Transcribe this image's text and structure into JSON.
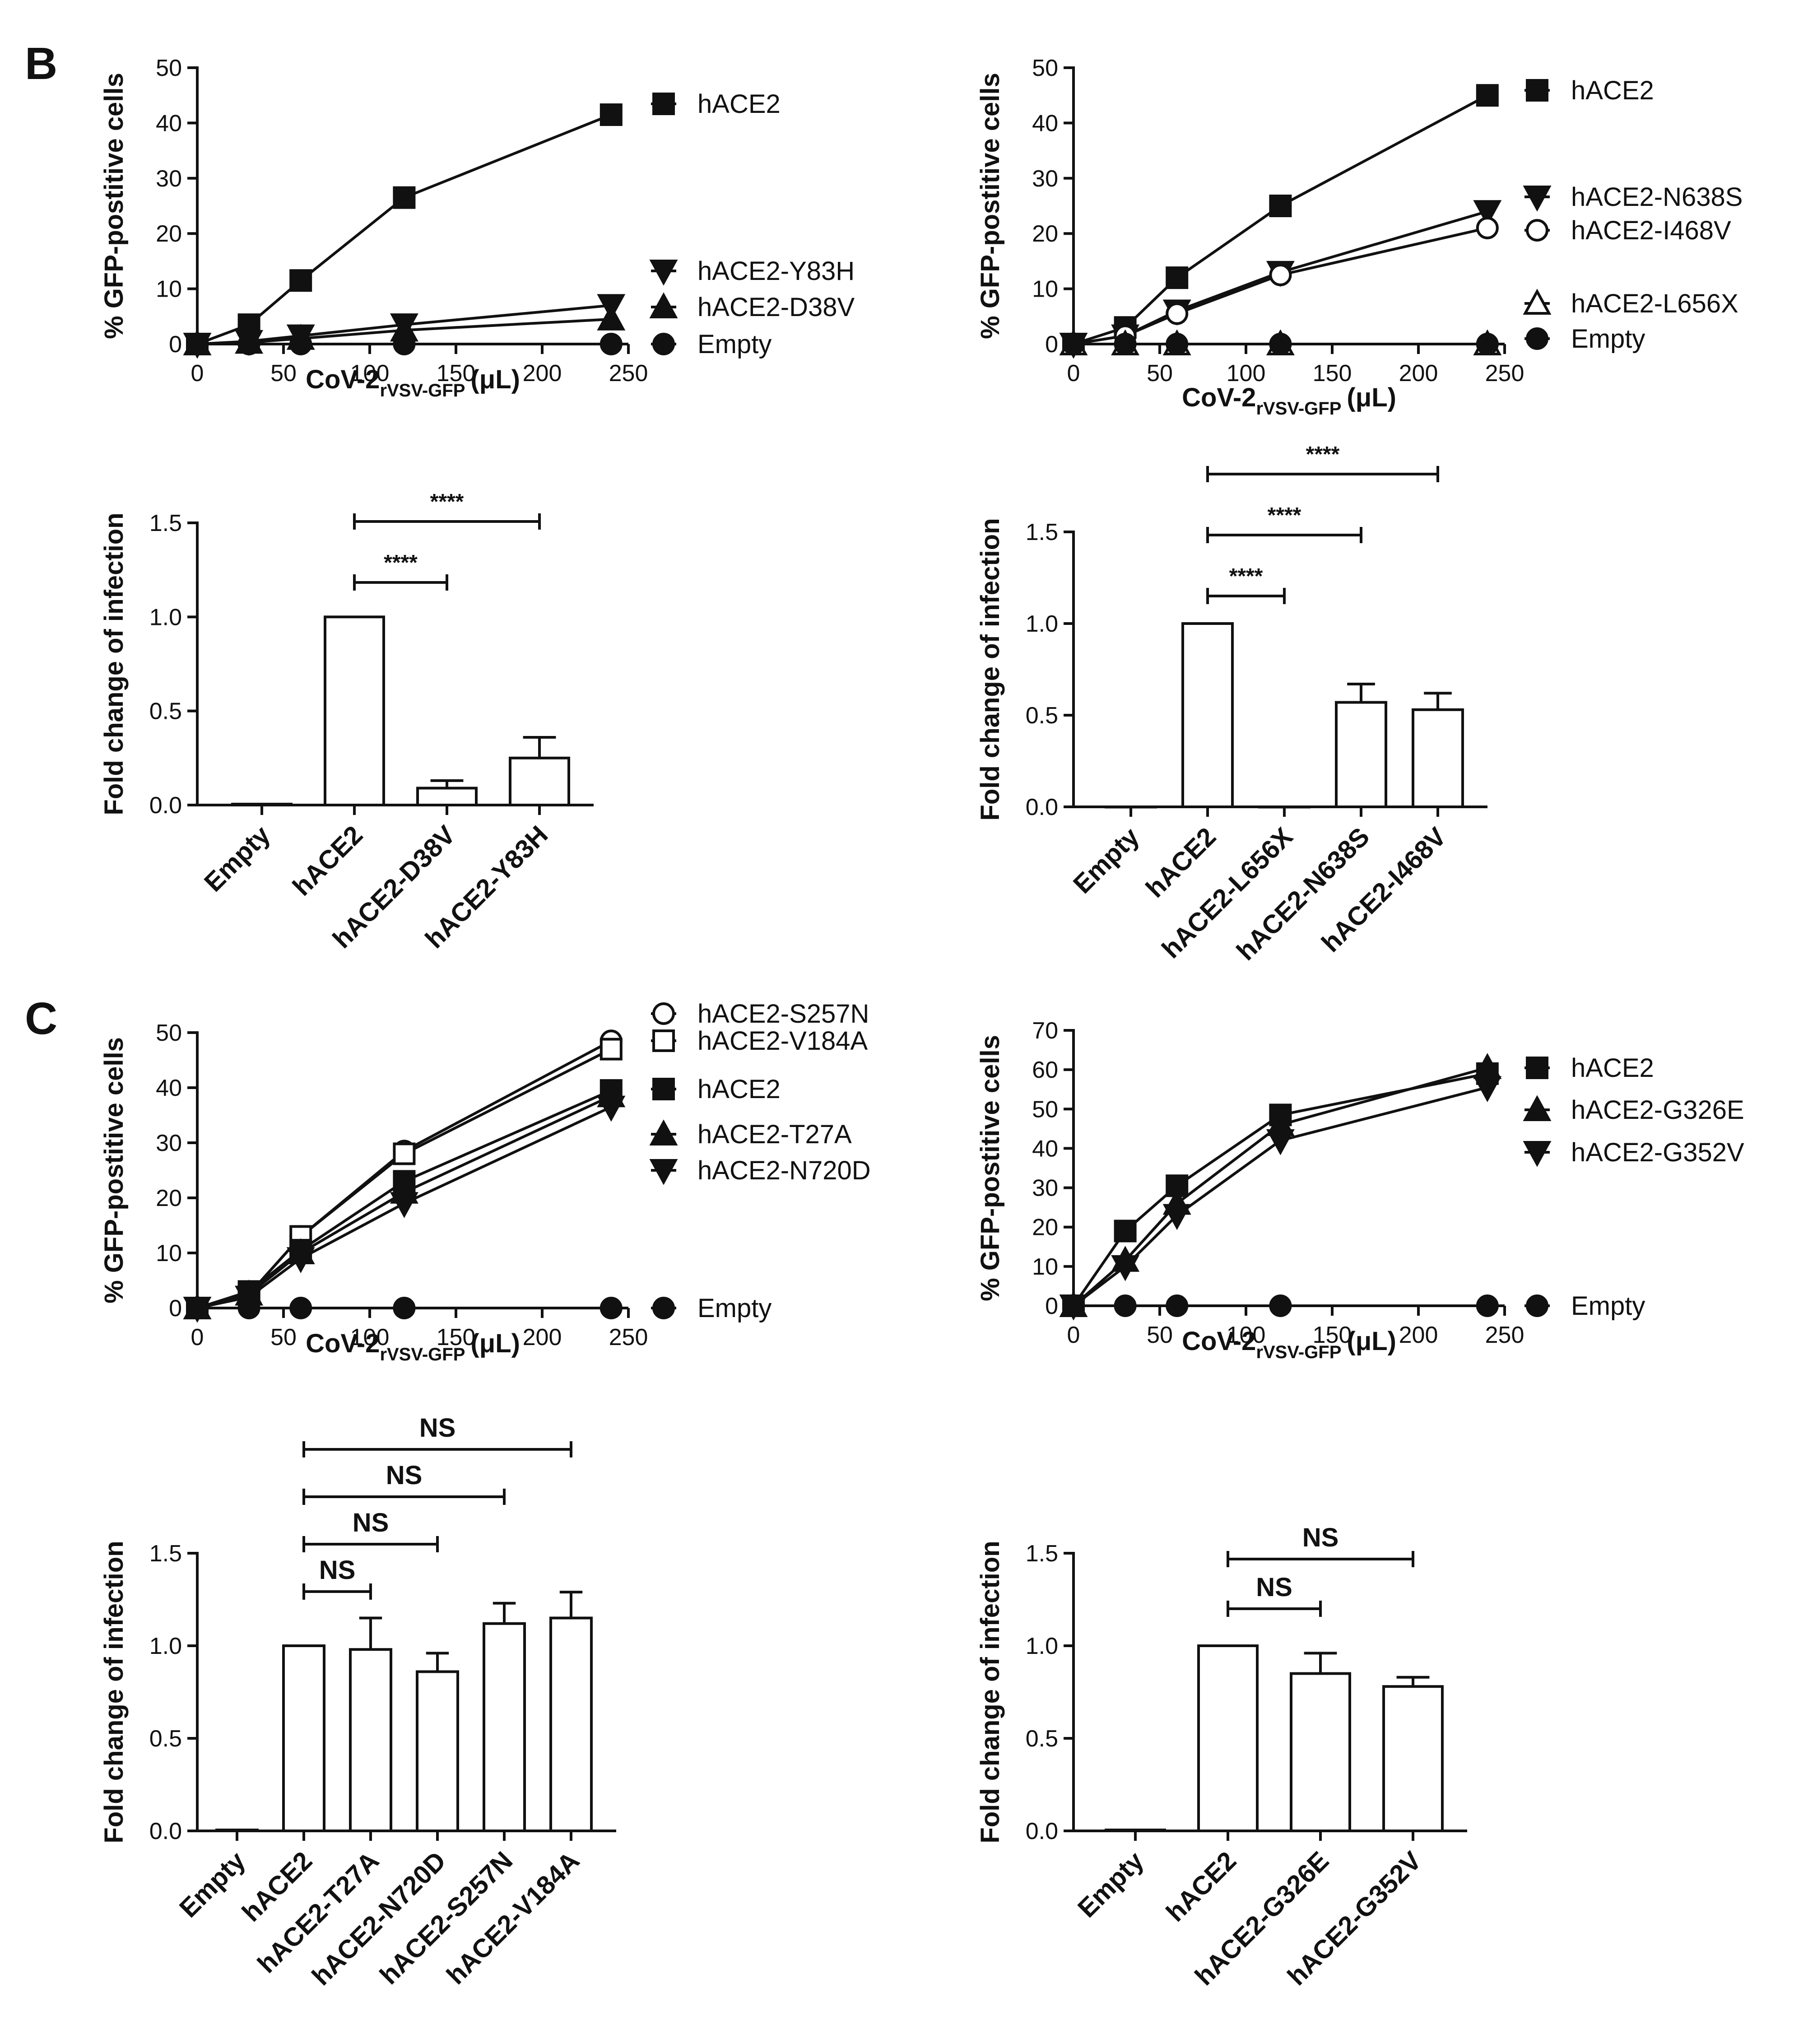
{
  "panel_letters": [
    "B",
    "C"
  ],
  "chart_data": [
    {
      "id": "B-left-line",
      "type": "line",
      "panel": "B",
      "title": "",
      "ylabel": "% GFP-postitive cells",
      "xlabel_main": "CoV-2",
      "xlabel_sub": "rVSV-GFP",
      "xlabel_unit": "(μL)",
      "ylim": [
        0,
        50
      ],
      "yticks": [
        0,
        10,
        20,
        30,
        40,
        50
      ],
      "xlim": [
        0,
        250
      ],
      "xticks": [
        0,
        50,
        100,
        150,
        200,
        250
      ],
      "x": [
        0,
        30,
        60,
        120,
        240
      ],
      "series": [
        {
          "name": "hACE2",
          "marker": "square-filled",
          "values": [
            0,
            3.5,
            11.5,
            26.5,
            41.5
          ]
        },
        {
          "name": "hACE2-Y83H",
          "marker": "triangle-down-filled",
          "values": [
            0,
            0.5,
            1.5,
            3.5,
            7
          ]
        },
        {
          "name": "hACE2-D38V",
          "marker": "triangle-up-filled",
          "values": [
            0,
            0.3,
            1,
            2.5,
            4.5
          ]
        },
        {
          "name": "Empty",
          "marker": "circle-filled",
          "values": [
            0,
            0,
            0,
            0,
            0
          ]
        }
      ]
    },
    {
      "id": "B-right-line",
      "type": "line",
      "panel": "B",
      "title": "",
      "ylabel": "% GFP-postitive cells",
      "xlabel_main": "CoV-2",
      "xlabel_sub": "rVSV-GFP",
      "xlabel_unit": "(μL)",
      "ylim": [
        0,
        50
      ],
      "yticks": [
        0,
        10,
        20,
        30,
        40,
        50
      ],
      "xlim": [
        0,
        250
      ],
      "xticks": [
        0,
        50,
        100,
        150,
        200,
        250
      ],
      "x": [
        0,
        30,
        60,
        120,
        240
      ],
      "series": [
        {
          "name": "hACE2",
          "marker": "square-filled",
          "values": [
            0,
            3,
            12,
            25,
            45
          ]
        },
        {
          "name": "hACE2-N638S",
          "marker": "triangle-down-filled",
          "values": [
            0,
            1.5,
            6,
            13,
            24
          ]
        },
        {
          "name": "hACE2-I468V",
          "marker": "circle-open",
          "values": [
            0,
            1.5,
            5.5,
            12.5,
            21
          ]
        },
        {
          "name": "hACE2-L656X",
          "marker": "triangle-up-open",
          "values": [
            0,
            0,
            0,
            0,
            0
          ]
        },
        {
          "name": "Empty",
          "marker": "circle-filled",
          "values": [
            0,
            0,
            0,
            0,
            0
          ]
        }
      ]
    },
    {
      "id": "B-left-bar",
      "type": "bar",
      "panel": "B",
      "ylabel": "Fold change of infection",
      "ylim": [
        0,
        1.5
      ],
      "yticks": [
        "0.0",
        "0.5",
        "1.0",
        "1.5"
      ],
      "categories": [
        "Empty",
        "hACE2",
        "hACE2-D38V",
        "hACE2-Y83H"
      ],
      "values": [
        0.005,
        1.0,
        0.09,
        0.25
      ],
      "errors": [
        0,
        0,
        0.04,
        0.11
      ],
      "significance": [
        {
          "from": 1,
          "to": 2,
          "label": "****",
          "level": 0
        },
        {
          "from": 1,
          "to": 3,
          "label": "****",
          "level": 1
        }
      ]
    },
    {
      "id": "B-right-bar",
      "type": "bar",
      "panel": "B",
      "ylabel": "Fold change of infection",
      "ylim": [
        0,
        1.5
      ],
      "yticks": [
        "0.0",
        "0.5",
        "1.0",
        "1.5"
      ],
      "categories": [
        "Empty",
        "hACE2",
        "hACE2-L656X",
        "hACE2-N638S",
        "hACE2-I468V"
      ],
      "values": [
        0.0,
        1.0,
        0.0,
        0.57,
        0.53
      ],
      "errors": [
        0,
        0,
        0,
        0.1,
        0.09
      ],
      "significance": [
        {
          "from": 1,
          "to": 2,
          "label": "****",
          "level": 0
        },
        {
          "from": 1,
          "to": 3,
          "label": "****",
          "level": 1
        },
        {
          "from": 1,
          "to": 4,
          "label": "****",
          "level": 2
        }
      ]
    },
    {
      "id": "C-left-line",
      "type": "line",
      "panel": "C",
      "ylabel": "% GFP-postitive cells",
      "xlabel_main": "CoV-2",
      "xlabel_sub": "rVSV-GFP",
      "xlabel_unit": "(μL)",
      "ylim": [
        0,
        50
      ],
      "yticks": [
        0,
        10,
        20,
        30,
        40,
        50
      ],
      "xlim": [
        0,
        250
      ],
      "xticks": [
        0,
        50,
        100,
        150,
        200,
        250
      ],
      "x": [
        0,
        30,
        60,
        120,
        240
      ],
      "series": [
        {
          "name": "hACE2-S257N",
          "marker": "circle-open",
          "values": [
            0,
            2.5,
            13,
            28.5,
            48.5
          ]
        },
        {
          "name": "hACE2-V184A",
          "marker": "square-open",
          "values": [
            0,
            2.5,
            13,
            28,
            47
          ]
        },
        {
          "name": "hACE2",
          "marker": "square-filled",
          "values": [
            0,
            3,
            10.5,
            23,
            39.5
          ]
        },
        {
          "name": "hACE2-T27A",
          "marker": "triangle-up-filled",
          "values": [
            0,
            2.5,
            10,
            21,
            38.5
          ]
        },
        {
          "name": "hACE2-N720D",
          "marker": "triangle-down-filled",
          "values": [
            0,
            2,
            9,
            19,
            36.5
          ]
        },
        {
          "name": "Empty",
          "marker": "circle-filled",
          "values": [
            0,
            0,
            0,
            0,
            0
          ]
        }
      ]
    },
    {
      "id": "C-right-line",
      "type": "line",
      "panel": "C",
      "ylabel": "% GFP-postitive cells",
      "xlabel_main": "CoV-2",
      "xlabel_sub": "rVSV-GFP",
      "xlabel_unit": "(μL)",
      "ylim": [
        0,
        70
      ],
      "yticks": [
        0,
        10,
        20,
        30,
        40,
        50,
        60,
        70
      ],
      "xlim": [
        0,
        250
      ],
      "xticks": [
        0,
        50,
        100,
        150,
        200,
        250
      ],
      "x": [
        0,
        30,
        60,
        120,
        240
      ],
      "series": [
        {
          "name": "hACE2",
          "marker": "square-filled",
          "values": [
            0,
            19,
            30.5,
            48.5,
            59
          ]
        },
        {
          "name": "hACE2-G326E",
          "marker": "triangle-up-filled",
          "values": [
            0,
            11.5,
            26,
            46,
            60.5
          ]
        },
        {
          "name": "hACE2-G352V",
          "marker": "triangle-down-filled",
          "values": [
            0,
            10,
            23,
            42,
            55.5
          ]
        },
        {
          "name": "Empty",
          "marker": "circle-filled",
          "values": [
            0,
            0,
            0,
            0,
            0
          ]
        }
      ]
    },
    {
      "id": "C-left-bar",
      "type": "bar",
      "panel": "C",
      "ylabel": "Fold change of infection",
      "ylim": [
        0,
        1.5
      ],
      "yticks": [
        "0.0",
        "0.5",
        "1.0",
        "1.5"
      ],
      "categories": [
        "Empty",
        "hACE2",
        "hACE2-T27A",
        "hACE2-N720D",
        "hACE2-S257N",
        "hACE2-V184A"
      ],
      "values": [
        0.005,
        1.0,
        0.98,
        0.86,
        1.12,
        1.15
      ],
      "errors": [
        0,
        0,
        0.17,
        0.1,
        0.11,
        0.14
      ],
      "significance": [
        {
          "from": 1,
          "to": 2,
          "label": "NS",
          "level": 0
        },
        {
          "from": 1,
          "to": 3,
          "label": "NS",
          "level": 1
        },
        {
          "from": 1,
          "to": 4,
          "label": "NS",
          "level": 2
        },
        {
          "from": 1,
          "to": 5,
          "label": "NS",
          "level": 3
        }
      ]
    },
    {
      "id": "C-right-bar",
      "type": "bar",
      "panel": "C",
      "ylabel": "Fold change of infection",
      "ylim": [
        0,
        1.5
      ],
      "yticks": [
        "0.0",
        "0.5",
        "1.0",
        "1.5"
      ],
      "categories": [
        "Empty",
        "hACE2",
        "hACE2-G326E",
        "hACE2-G352V"
      ],
      "values": [
        0.005,
        1.0,
        0.85,
        0.78
      ],
      "errors": [
        0,
        0,
        0.11,
        0.05
      ],
      "significance": [
        {
          "from": 1,
          "to": 2,
          "label": "NS",
          "level": 0
        },
        {
          "from": 1,
          "to": 3,
          "label": "NS",
          "level": 1
        }
      ]
    }
  ]
}
